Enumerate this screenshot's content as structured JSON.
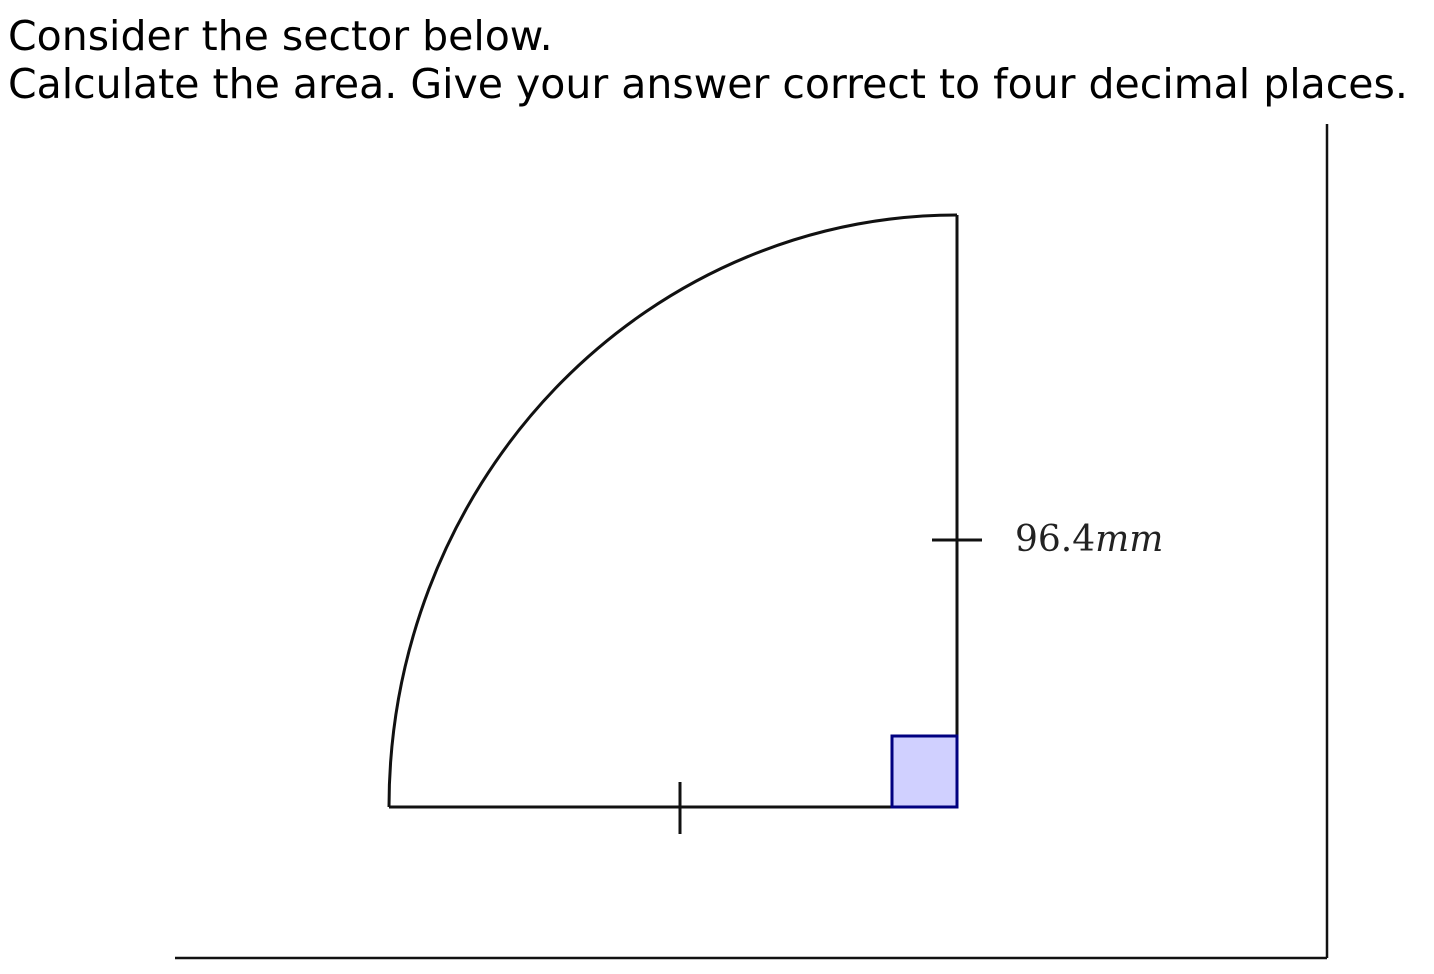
{
  "question": {
    "line1": "Consider the sector below.",
    "line2": "Calculate the area. Give your answer correct to four decimal places."
  },
  "figure": {
    "shape": "quarter-circle sector",
    "right_angle_marker": true,
    "radius_label": {
      "value": "96.4",
      "unit": "mm"
    },
    "colors": {
      "outline": "#111111",
      "right_angle_fill": "#d0d0ff",
      "right_angle_stroke": "#000080"
    }
  }
}
